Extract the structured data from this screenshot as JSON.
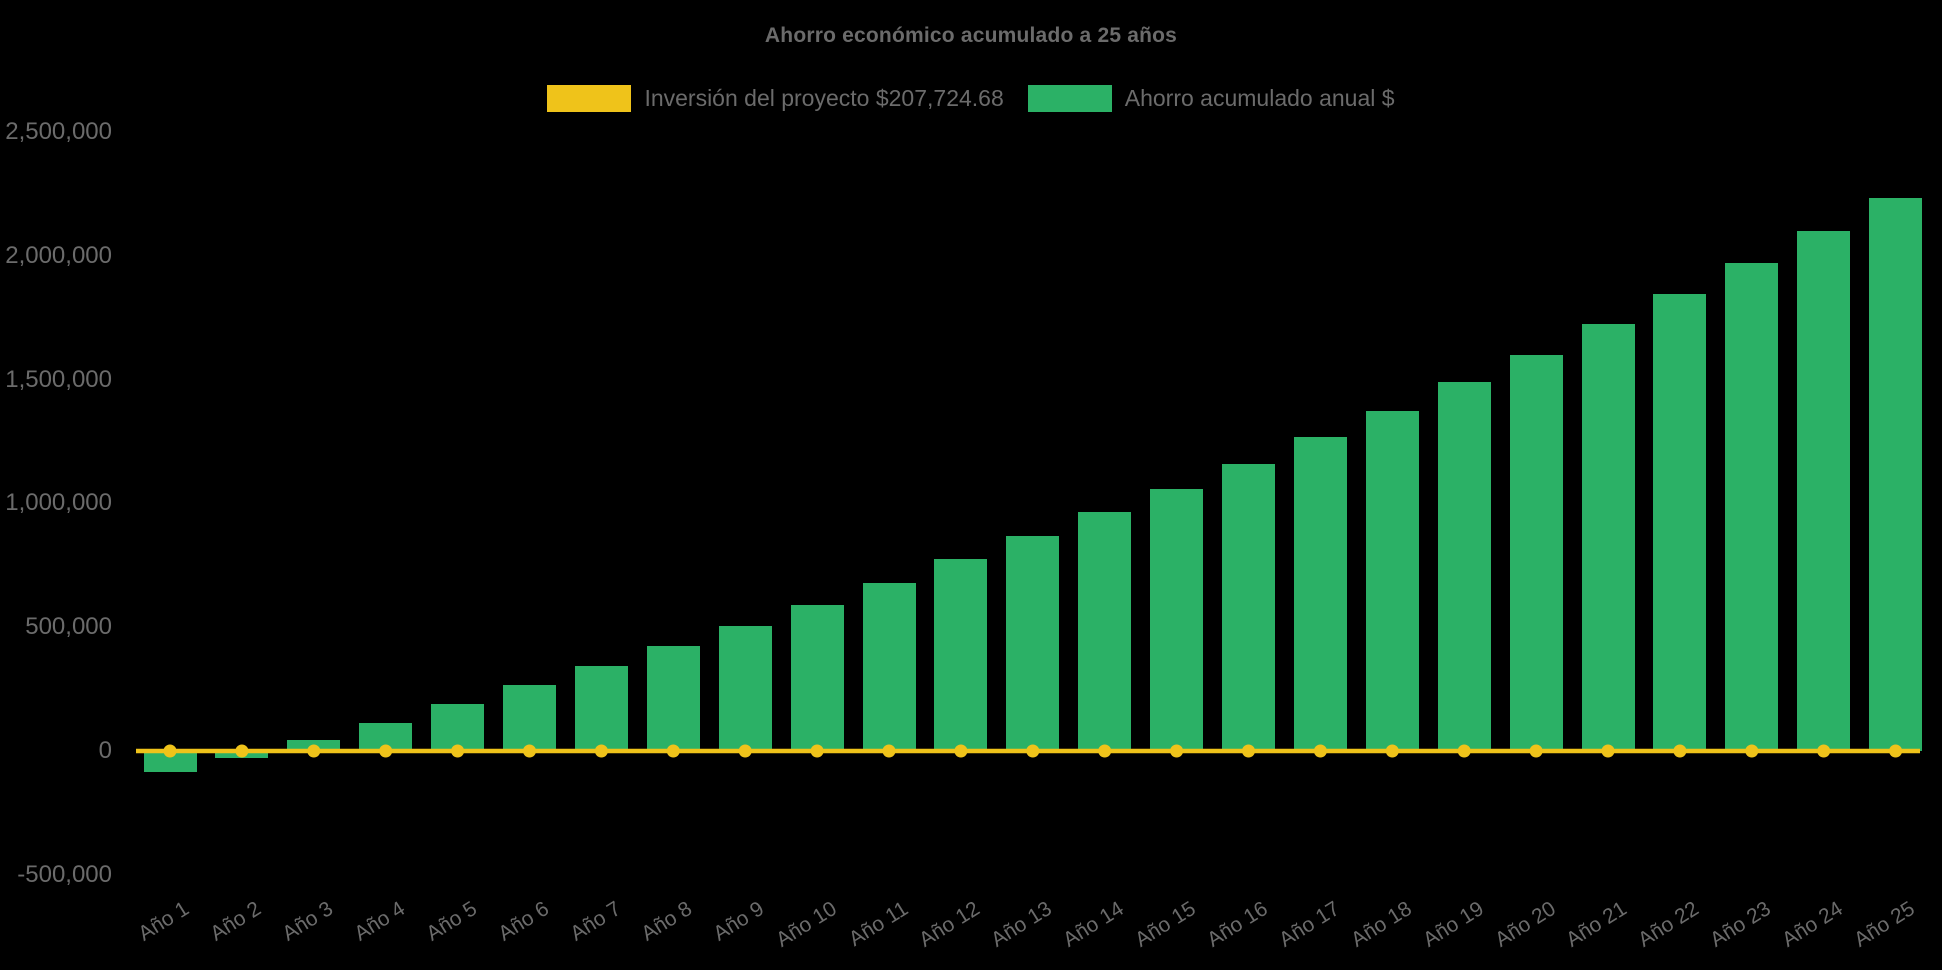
{
  "chart": {
    "title": "Ahorro económico acumulado a 25 años",
    "background_color": "#000000",
    "text_color": "#6b6b6b"
  },
  "legend": {
    "items": [
      {
        "label": "Inversión del proyecto $207,724.68",
        "color": "#EFC31A",
        "series": "investment-line"
      },
      {
        "label": "Ahorro acumulado anual $",
        "color": "#2BB166",
        "series": "savings-bars"
      }
    ]
  },
  "chart_data": {
    "type": "bar",
    "title": "Ahorro económico acumulado a 25 años",
    "categories": [
      "Año 1",
      "Año 2",
      "Año 3",
      "Año 4",
      "Año 5",
      "Año 6",
      "Año 7",
      "Año 8",
      "Año 9",
      "Año 10",
      "Año 11",
      "Año 12",
      "Año 13",
      "Año 14",
      "Año 15",
      "Año 16",
      "Año 17",
      "Año 18",
      "Año 19",
      "Año 20",
      "Año 21",
      "Año 22",
      "Año 23",
      "Año 24",
      "Año 25"
    ],
    "series": [
      {
        "name": "Ahorro acumulado anual $",
        "type": "bar",
        "color": "#2BB166",
        "values": [
          -85000,
          -30000,
          45000,
          115000,
          190000,
          265000,
          345000,
          425000,
          505000,
          590000,
          680000,
          775000,
          870000,
          965000,
          1060000,
          1160000,
          1270000,
          1375000,
          1490000,
          1600000,
          1725000,
          1845000,
          1970000,
          2100000,
          2235000
        ]
      },
      {
        "name": "Inversión del proyecto $207,724.68",
        "type": "line",
        "color": "#EFC31A",
        "marker": "circle",
        "values": [
          0,
          0,
          0,
          0,
          0,
          0,
          0,
          0,
          0,
          0,
          0,
          0,
          0,
          0,
          0,
          0,
          0,
          0,
          0,
          0,
          0,
          0,
          0,
          0,
          0
        ]
      }
    ],
    "xlabel": "",
    "ylabel": "",
    "yaxis": {
      "ticks": [
        -500000,
        0,
        500000,
        1000000,
        1500000,
        2000000,
        2500000
      ],
      "tick_labels": [
        "-500,000",
        "0",
        "500,000",
        "1,000,000",
        "1,500,000",
        "2,000,000",
        "2,500,000"
      ],
      "range": [
        -560000,
        2600000
      ]
    },
    "grid": false,
    "legend_position": "top-center",
    "x_tick_rotation": -32
  }
}
